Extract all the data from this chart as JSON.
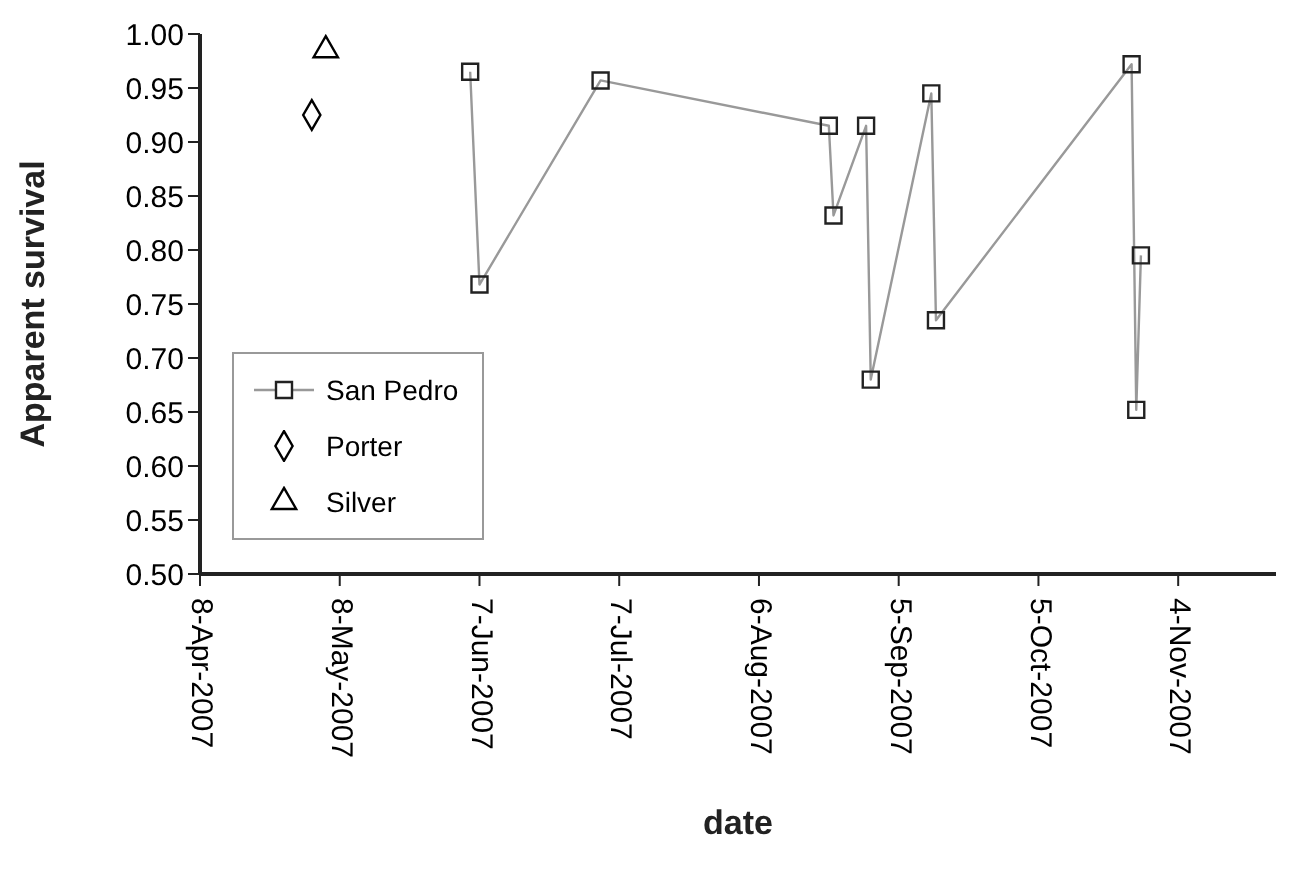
{
  "chart_data": {
    "type": "scatter",
    "xlabel": "date",
    "ylabel": "Apparent survival",
    "xlim": [
      "2007-04-08",
      "2007-11-25"
    ],
    "xticks": [
      {
        "value": "2007-04-08",
        "label": "8-Apr-2007"
      },
      {
        "value": "2007-05-08",
        "label": "8-May-2007"
      },
      {
        "value": "2007-06-07",
        "label": "7-Jun-2007"
      },
      {
        "value": "2007-07-07",
        "label": "7-Jul-2007"
      },
      {
        "value": "2007-08-06",
        "label": "6-Aug-2007"
      },
      {
        "value": "2007-09-05",
        "label": "5-Sep-2007"
      },
      {
        "value": "2007-10-05",
        "label": "5-Oct-2007"
      },
      {
        "value": "2007-11-04",
        "label": "4-Nov-2007"
      }
    ],
    "ylim": [
      0.5,
      1.0
    ],
    "yticks": [
      {
        "value": 0.5,
        "label": "0.50"
      },
      {
        "value": 0.55,
        "label": "0.55"
      },
      {
        "value": 0.6,
        "label": "0.60"
      },
      {
        "value": 0.65,
        "label": "0.65"
      },
      {
        "value": 0.7,
        "label": "0.70"
      },
      {
        "value": 0.75,
        "label": "0.75"
      },
      {
        "value": 0.8,
        "label": "0.80"
      },
      {
        "value": 0.85,
        "label": "0.85"
      },
      {
        "value": 0.9,
        "label": "0.90"
      },
      {
        "value": 0.95,
        "label": "0.95"
      },
      {
        "value": 1.0,
        "label": "1.00"
      }
    ],
    "grid": false,
    "legend": "bottom left",
    "series": [
      {
        "name": "San Pedro",
        "type": "line",
        "marker": "square",
        "color": "#999999",
        "x": [
          "2007-06-05",
          "2007-06-07",
          "2007-07-03",
          "2007-08-21",
          "2007-08-22",
          "2007-08-29",
          "2007-08-30",
          "2007-09-12",
          "2007-09-13",
          "2007-10-25",
          "2007-10-26",
          "2007-10-27"
        ],
        "values": [
          0.965,
          0.768,
          0.957,
          0.915,
          0.832,
          0.915,
          0.68,
          0.945,
          0.735,
          0.972,
          0.652,
          0.795
        ]
      },
      {
        "name": "Porter",
        "marker": "diamond",
        "color": "#000000",
        "x": [
          "2007-05-02"
        ],
        "values": [
          0.925
        ]
      },
      {
        "name": "Silver",
        "marker": "triangle",
        "color": "#000000",
        "x": [
          "2007-05-05"
        ],
        "values": [
          0.985
        ]
      }
    ]
  }
}
